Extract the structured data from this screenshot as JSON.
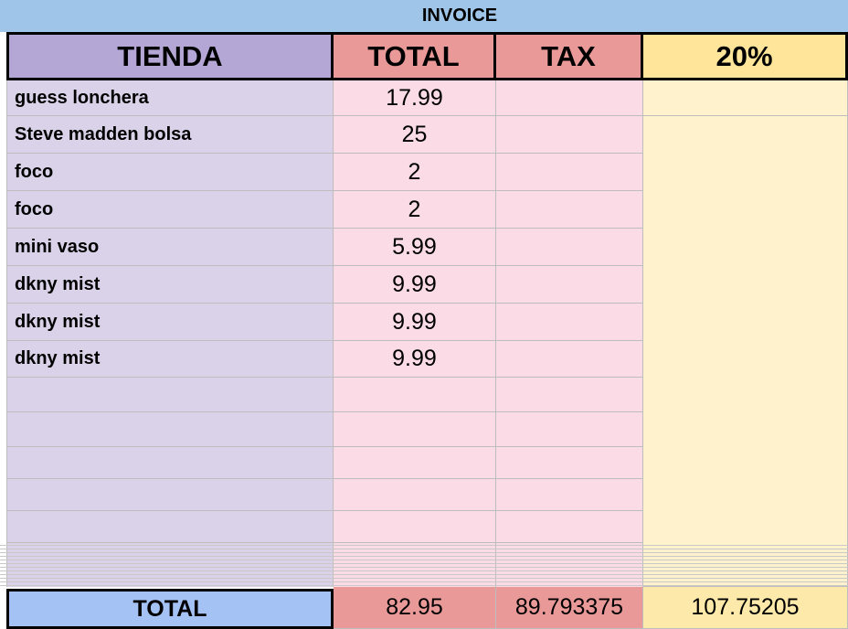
{
  "title": "INVOICE",
  "header": [
    "TIENDA",
    "TOTAL",
    "TAX",
    "20%"
  ],
  "rows": [
    [
      "guess lonchera",
      "17.99"
    ],
    [
      "Steve madden bolsa",
      "25"
    ],
    [
      "foco",
      "2"
    ],
    [
      "foco",
      "2"
    ],
    [
      "mini vaso",
      "5.99"
    ],
    [
      "dkny mist",
      "9.99"
    ],
    [
      "dkny mist",
      "9.99"
    ],
    [
      "dkny mist",
      "9.99"
    ]
  ],
  "footer": [
    "TOTAL",
    "82.95",
    "89.793375",
    "107.75205"
  ]
}
